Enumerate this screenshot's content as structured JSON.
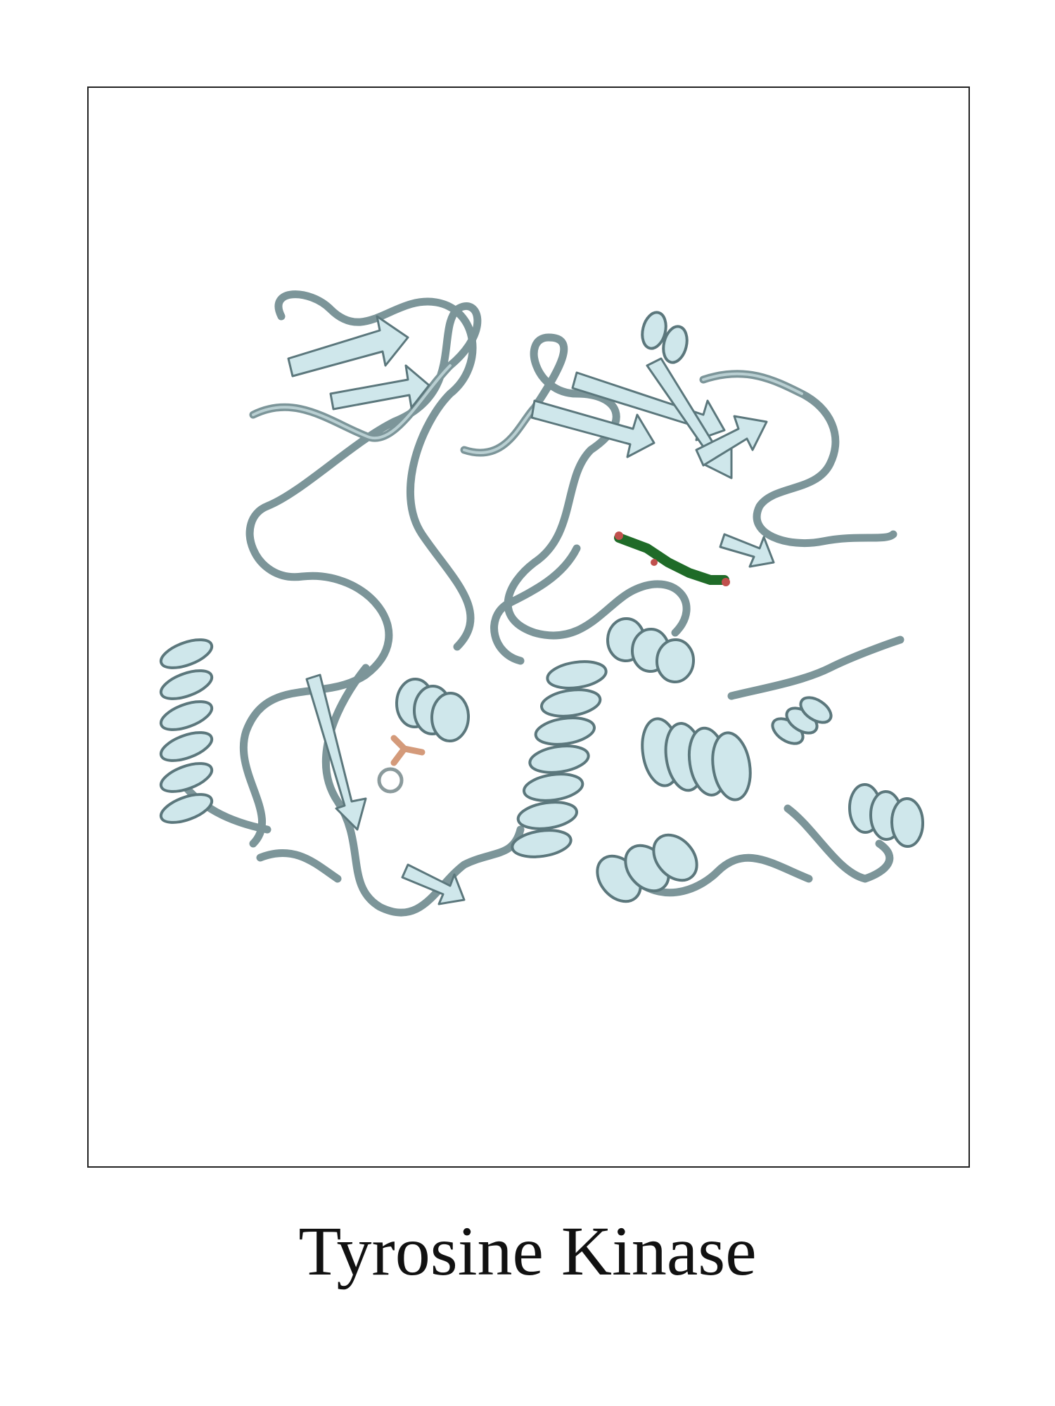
{
  "caption": "Tyrosine Kinase"
}
